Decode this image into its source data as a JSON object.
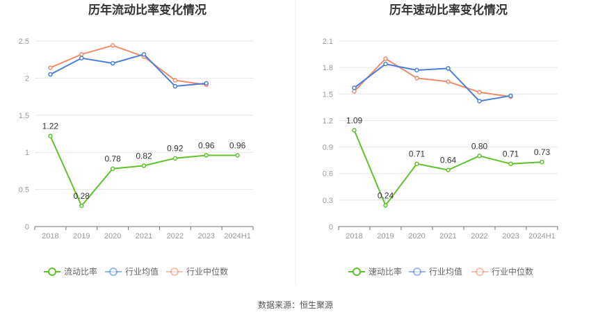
{
  "source_text": "数据来源：恒生聚源",
  "colors": {
    "main": "#5dc22c",
    "avg": "#4a7fd8",
    "median": "#f08c6c",
    "grid": "#e6e6e6",
    "axis": "#6e7079",
    "divider": "#eeeeee"
  },
  "chart_data": [
    {
      "type": "line",
      "title": "历年流动比率变化情况",
      "categories": [
        "2018",
        "2019",
        "2020",
        "2021",
        "2022",
        "2023",
        "2024H1"
      ],
      "ylim": [
        0,
        2.5
      ],
      "yticks": [
        "0",
        "0.5",
        "1",
        "1.5",
        "2",
        "2.5"
      ],
      "ytick_values": [
        0,
        0.5,
        1,
        1.5,
        2,
        2.5
      ],
      "grid": true,
      "legend_position": "bottom",
      "series": [
        {
          "name": "流动比率",
          "key": "main",
          "values": [
            1.22,
            0.28,
            0.78,
            0.82,
            0.92,
            0.96,
            0.96
          ],
          "labels": [
            "1.22",
            "0.28",
            "0.78",
            "0.82",
            "0.92",
            "0.96",
            "0.96"
          ]
        },
        {
          "name": "行业均值",
          "key": "avg",
          "values": [
            2.05,
            2.27,
            2.2,
            2.32,
            1.89,
            1.93,
            null
          ]
        },
        {
          "name": "行业中位数",
          "key": "median",
          "values": [
            2.14,
            2.32,
            2.44,
            2.29,
            1.97,
            1.91,
            null
          ]
        }
      ]
    },
    {
      "type": "line",
      "title": "历年速动比率变化情况",
      "categories": [
        "2018",
        "2019",
        "2020",
        "2021",
        "2022",
        "2023",
        "2024H1"
      ],
      "ylim": [
        0,
        2.1
      ],
      "yticks": [
        "0",
        "0.3",
        "0.6",
        "0.9",
        "1.2",
        "1.5",
        "1.8",
        "2.1"
      ],
      "ytick_values": [
        0,
        0.3,
        0.6,
        0.9,
        1.2,
        1.5,
        1.8,
        2.1
      ],
      "grid": true,
      "legend_position": "bottom",
      "series": [
        {
          "name": "速动比率",
          "key": "main",
          "values": [
            1.09,
            0.24,
            0.71,
            0.64,
            0.8,
            0.71,
            0.73
          ],
          "labels": [
            "1.09",
            "0.24",
            "0.71",
            "0.64",
            "0.80",
            "0.71",
            "0.73"
          ]
        },
        {
          "name": "行业均值",
          "key": "avg",
          "values": [
            1.57,
            1.84,
            1.77,
            1.79,
            1.42,
            1.48,
            null
          ]
        },
        {
          "name": "行业中位数",
          "key": "median",
          "values": [
            1.53,
            1.9,
            1.68,
            1.64,
            1.52,
            1.47,
            null
          ]
        }
      ]
    }
  ]
}
